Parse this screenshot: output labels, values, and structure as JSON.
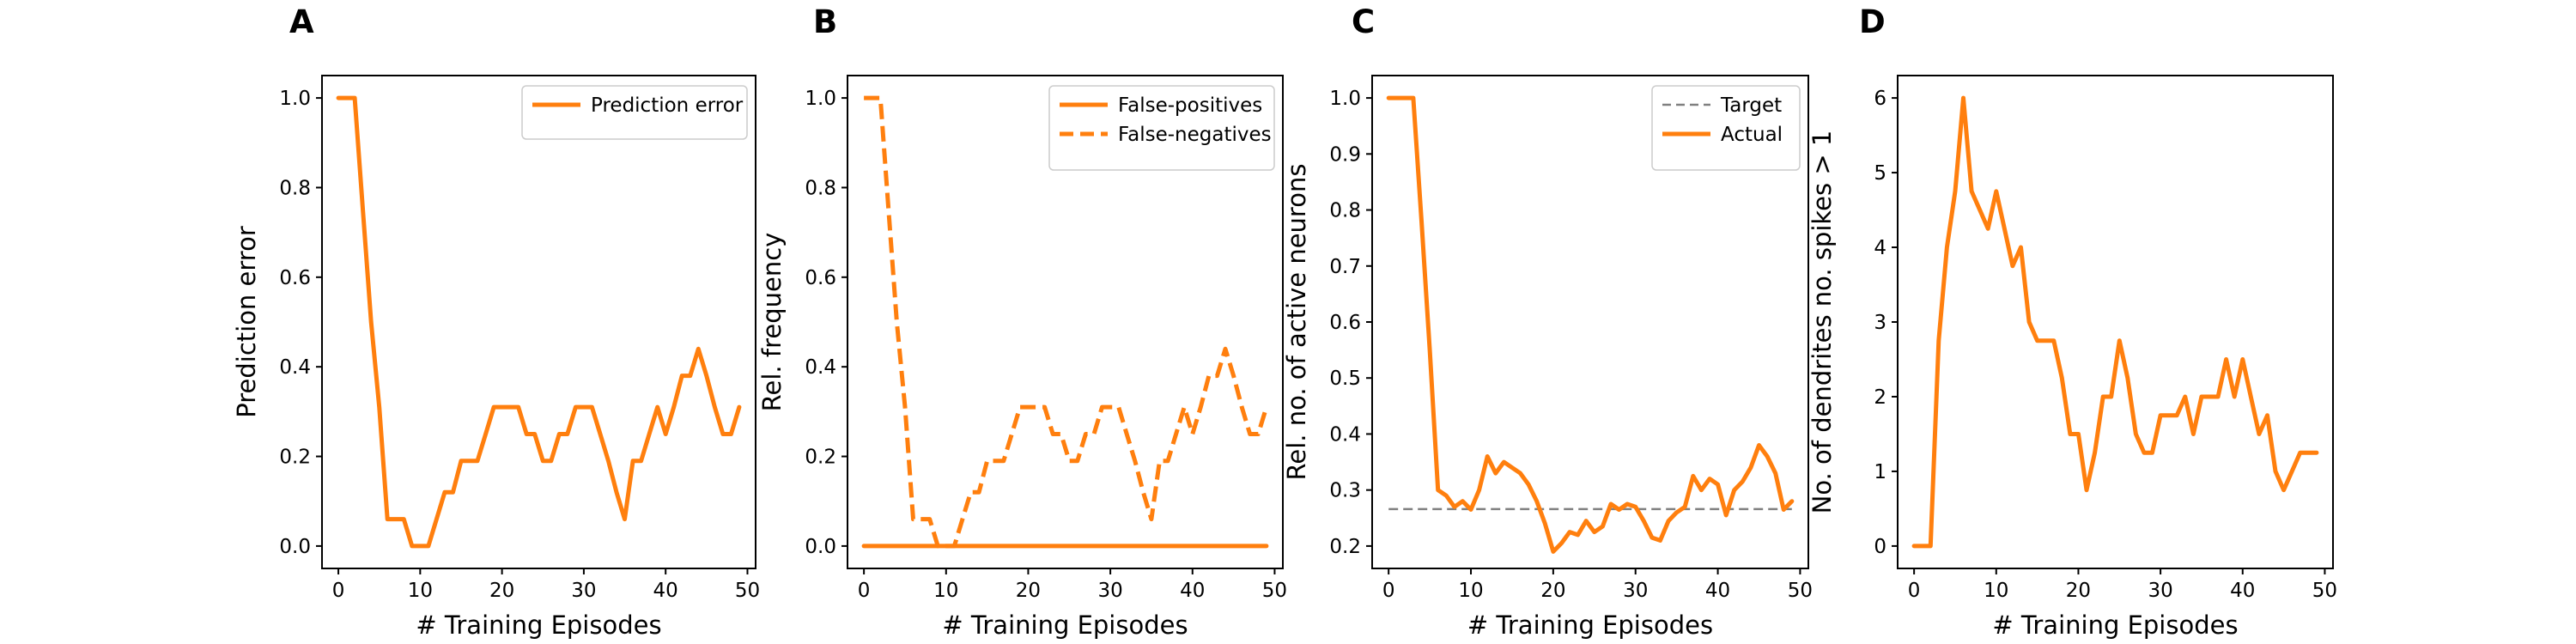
{
  "chart_data": [
    {
      "panel": "A",
      "type": "line",
      "xlabel": "# Training Episodes",
      "ylabel": "Prediction error",
      "xlim": [
        -2,
        51
      ],
      "ylim": [
        -0.05,
        1.05
      ],
      "xticks": [
        0,
        10,
        20,
        30,
        40,
        50
      ],
      "yticks": [
        0.0,
        0.2,
        0.4,
        0.6,
        0.8,
        1.0
      ],
      "ytick_labels": [
        "0.0",
        "0.2",
        "0.4",
        "0.6",
        "0.8",
        "1.0"
      ],
      "legend": "top-right",
      "series": [
        {
          "name": "Prediction error",
          "color": "#ff7f0e",
          "style": "solid",
          "x": [
            0,
            1,
            2,
            3,
            4,
            5,
            6,
            7,
            8,
            9,
            10,
            11,
            12,
            13,
            14,
            15,
            16,
            17,
            18,
            19,
            20,
            21,
            22,
            23,
            24,
            25,
            26,
            27,
            28,
            29,
            30,
            31,
            32,
            33,
            34,
            35,
            36,
            37,
            38,
            39,
            40,
            41,
            42,
            43,
            44,
            45,
            46,
            47,
            48,
            49
          ],
          "values": [
            1.0,
            1.0,
            1.0,
            0.75,
            0.5,
            0.31,
            0.06,
            0.06,
            0.06,
            0.0,
            0.0,
            0.0,
            0.06,
            0.12,
            0.12,
            0.19,
            0.19,
            0.19,
            0.25,
            0.31,
            0.31,
            0.31,
            0.31,
            0.25,
            0.25,
            0.19,
            0.19,
            0.25,
            0.25,
            0.31,
            0.31,
            0.31,
            0.25,
            0.19,
            0.12,
            0.06,
            0.19,
            0.19,
            0.25,
            0.31,
            0.25,
            0.31,
            0.38,
            0.38,
            0.44,
            0.38,
            0.31,
            0.25,
            0.25,
            0.31
          ]
        }
      ]
    },
    {
      "panel": "B",
      "type": "line",
      "xlabel": "# Training Episodes",
      "ylabel": "Rel. frequency",
      "xlim": [
        -2,
        51
      ],
      "ylim": [
        -0.05,
        1.05
      ],
      "xticks": [
        0,
        10,
        20,
        30,
        40,
        50
      ],
      "yticks": [
        0.0,
        0.2,
        0.4,
        0.6,
        0.8,
        1.0
      ],
      "ytick_labels": [
        "0.0",
        "0.2",
        "0.4",
        "0.6",
        "0.8",
        "1.0"
      ],
      "legend": "top-right",
      "series": [
        {
          "name": "False-positives",
          "color": "#ff7f0e",
          "style": "solid",
          "x": [
            0,
            49
          ],
          "values": [
            0.0,
            0.0
          ]
        },
        {
          "name": "False-negatives",
          "color": "#ff7f0e",
          "style": "dashed",
          "x": [
            0,
            1,
            2,
            3,
            4,
            5,
            6,
            7,
            8,
            9,
            10,
            11,
            12,
            13,
            14,
            15,
            16,
            17,
            18,
            19,
            20,
            21,
            22,
            23,
            24,
            25,
            26,
            27,
            28,
            29,
            30,
            31,
            32,
            33,
            34,
            35,
            36,
            37,
            38,
            39,
            40,
            41,
            42,
            43,
            44,
            45,
            46,
            47,
            48,
            49
          ],
          "values": [
            1.0,
            1.0,
            1.0,
            0.75,
            0.5,
            0.31,
            0.06,
            0.06,
            0.06,
            0.0,
            0.0,
            0.0,
            0.06,
            0.12,
            0.12,
            0.19,
            0.19,
            0.19,
            0.25,
            0.31,
            0.31,
            0.31,
            0.31,
            0.25,
            0.25,
            0.19,
            0.19,
            0.25,
            0.25,
            0.31,
            0.31,
            0.31,
            0.25,
            0.19,
            0.12,
            0.06,
            0.19,
            0.19,
            0.25,
            0.31,
            0.25,
            0.31,
            0.38,
            0.38,
            0.44,
            0.38,
            0.31,
            0.25,
            0.25,
            0.31
          ]
        }
      ]
    },
    {
      "panel": "C",
      "type": "line",
      "xlabel": "# Training Episodes",
      "ylabel": "Rel. no. of active neurons",
      "xlim": [
        -2,
        51
      ],
      "ylim": [
        0.16,
        1.04
      ],
      "xticks": [
        0,
        10,
        20,
        30,
        40,
        50
      ],
      "yticks": [
        0.2,
        0.3,
        0.4,
        0.5,
        0.6,
        0.7,
        0.8,
        0.9,
        1.0
      ],
      "ytick_labels": [
        "0.2",
        "0.3",
        "0.4",
        "0.5",
        "0.6",
        "0.7",
        "0.8",
        "0.9",
        "1.0"
      ],
      "legend": "top-right",
      "series": [
        {
          "name": "Target",
          "color": "#808080",
          "style": "dashed",
          "x": [
            0,
            49
          ],
          "values": [
            0.266,
            0.266
          ]
        },
        {
          "name": "Actual",
          "color": "#ff7f0e",
          "style": "solid",
          "x": [
            0,
            1,
            2,
            3,
            4,
            5,
            6,
            7,
            8,
            9,
            10,
            11,
            12,
            13,
            14,
            15,
            16,
            17,
            18,
            19,
            20,
            21,
            22,
            23,
            24,
            25,
            26,
            27,
            28,
            29,
            30,
            31,
            32,
            33,
            34,
            35,
            36,
            37,
            38,
            39,
            40,
            41,
            42,
            43,
            44,
            45,
            46,
            47,
            48,
            49
          ],
          "values": [
            1.0,
            1.0,
            1.0,
            1.0,
            0.78,
            0.55,
            0.3,
            0.29,
            0.27,
            0.28,
            0.265,
            0.3,
            0.36,
            0.33,
            0.35,
            0.34,
            0.33,
            0.31,
            0.28,
            0.24,
            0.19,
            0.205,
            0.225,
            0.22,
            0.245,
            0.225,
            0.235,
            0.275,
            0.265,
            0.275,
            0.27,
            0.245,
            0.215,
            0.21,
            0.245,
            0.26,
            0.27,
            0.325,
            0.3,
            0.32,
            0.31,
            0.255,
            0.3,
            0.315,
            0.34,
            0.38,
            0.36,
            0.33,
            0.265,
            0.28
          ]
        }
      ]
    },
    {
      "panel": "D",
      "type": "line",
      "xlabel": "# Training Episodes",
      "ylabel": "No. of dendrites no. spikes > 1",
      "xlim": [
        -2,
        51
      ],
      "ylim": [
        -0.3,
        6.3
      ],
      "xticks": [
        0,
        10,
        20,
        30,
        40,
        50
      ],
      "yticks": [
        0,
        1,
        2,
        3,
        4,
        5,
        6
      ],
      "ytick_labels": [
        "0",
        "1",
        "2",
        "3",
        "4",
        "5",
        "6"
      ],
      "legend": "none",
      "series": [
        {
          "color": "#ff7f0e",
          "style": "solid",
          "x": [
            0,
            1,
            2,
            3,
            4,
            5,
            6,
            7,
            8,
            9,
            10,
            11,
            12,
            13,
            14,
            15,
            16,
            17,
            18,
            19,
            20,
            21,
            22,
            23,
            24,
            25,
            26,
            27,
            28,
            29,
            30,
            31,
            32,
            33,
            34,
            35,
            36,
            37,
            38,
            39,
            40,
            41,
            42,
            43,
            44,
            45,
            46,
            47,
            48,
            49
          ],
          "values": [
            0.0,
            0.0,
            0.0,
            2.75,
            4.0,
            4.75,
            6.0,
            4.75,
            4.5,
            4.25,
            4.75,
            4.25,
            3.75,
            4.0,
            3.0,
            2.75,
            2.75,
            2.75,
            2.25,
            1.5,
            1.5,
            0.75,
            1.25,
            2.0,
            2.0,
            2.75,
            2.25,
            1.5,
            1.25,
            1.25,
            1.75,
            1.75,
            1.75,
            2.0,
            1.5,
            2.0,
            2.0,
            2.0,
            2.5,
            2.0,
            2.5,
            2.0,
            1.5,
            1.75,
            1.0,
            0.75,
            1.0,
            1.25,
            1.25,
            1.25
          ]
        }
      ]
    }
  ]
}
